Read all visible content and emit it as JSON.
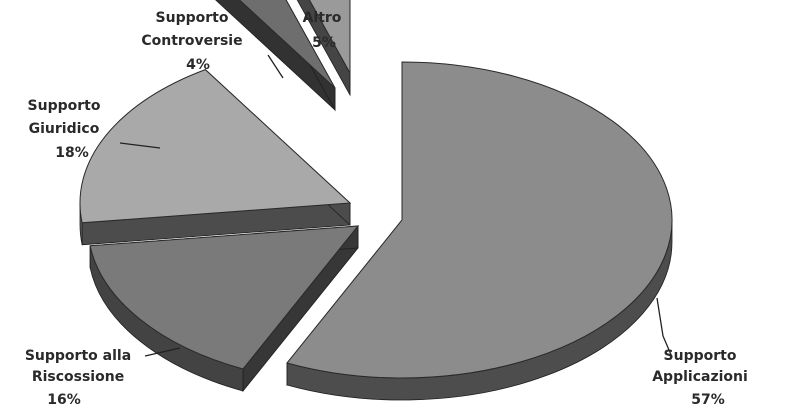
{
  "chart_data": {
    "type": "pie",
    "style": "3d-exploded",
    "title": "",
    "slices": [
      {
        "name": "Supporto Applicazioni",
        "value": 57,
        "label_lines": [
          "Supporto",
          "Applicazioni"
        ],
        "pct_text": "57%",
        "color": "#8c8c8c"
      },
      {
        "name": "Supporto alla Riscossione",
        "value": 16,
        "label_lines": [
          "Supporto alla",
          "Riscossione"
        ],
        "pct_text": "16%",
        "color": "#7a7a7a"
      },
      {
        "name": "Supporto Giuridico",
        "value": 18,
        "label_lines": [
          "Supporto",
          "Giuridico"
        ],
        "pct_text": "18%",
        "color": "#a9a9a9"
      },
      {
        "name": "Supporto Controversie",
        "value": 4,
        "label_lines": [
          "Supporto",
          "Controversie"
        ],
        "pct_text": "4%",
        "color": "#6e6e6e"
      },
      {
        "name": "Altro",
        "value": 5,
        "label_lines": [
          "Altro"
        ],
        "pct_text": "5%",
        "color": "#9a9a9a"
      }
    ]
  }
}
